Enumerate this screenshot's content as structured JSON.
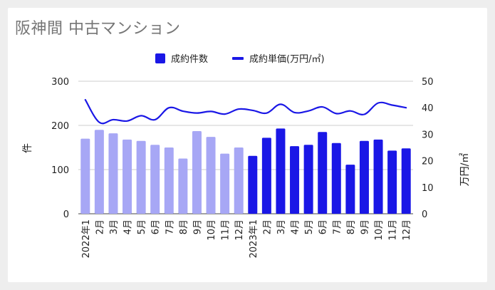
{
  "title": "阪神間 中古マンション",
  "colors": {
    "bar_2022": "#a7a7f5",
    "bar_2023": "#1a17e6",
    "line": "#1a17e6",
    "grid": "#cccccc",
    "background": "#ffffff"
  },
  "chart_data": {
    "type": "bar",
    "categories": [
      "2022年1",
      "2月",
      "3月",
      "4月",
      "5月",
      "6月",
      "7月",
      "8月",
      "9月",
      "10月",
      "11月",
      "12月",
      "2023年1",
      "2月",
      "3月",
      "4月",
      "5月",
      "6月",
      "7月",
      "8月",
      "9月",
      "10月",
      "11月",
      "12月"
    ],
    "series": [
      {
        "name": "成約件数",
        "type": "bar",
        "axis": "left",
        "values": [
          170,
          190,
          182,
          168,
          165,
          156,
          150,
          125,
          187,
          174,
          136,
          150,
          131,
          172,
          193,
          153,
          156,
          185,
          160,
          111,
          165,
          168,
          143,
          148
        ]
      },
      {
        "name": "成約単価(万円/㎡)",
        "type": "line",
        "axis": "right",
        "values": [
          43,
          34.5,
          35.5,
          35,
          37,
          35.5,
          40,
          38.7,
          38,
          38.6,
          37.6,
          39.5,
          39,
          38,
          41.3,
          38.2,
          38.8,
          40.3,
          37.8,
          38.8,
          37.5,
          41.8,
          41,
          40
        ]
      }
    ],
    "ylabel": "件",
    "ylabel_right": "万円/㎡",
    "ylim": [
      0,
      300
    ],
    "ylim_right": [
      0,
      50
    ],
    "yticks": [
      0,
      100,
      200,
      300
    ],
    "yticks_right": [
      0,
      10,
      20,
      30,
      40,
      50
    ],
    "grid": true,
    "legend_position": "top-center"
  }
}
